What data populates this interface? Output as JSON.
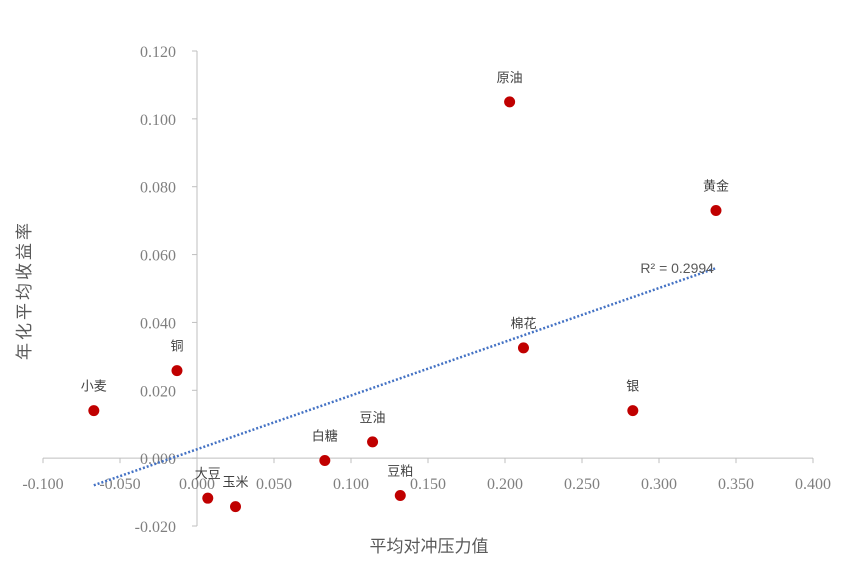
{
  "chart_data": {
    "type": "scatter",
    "title": "",
    "xlabel": "平均对冲压力值",
    "ylabel": "年化平均收益率",
    "xlim": [
      -0.1,
      0.4
    ],
    "ylim": [
      -0.02,
      0.12
    ],
    "x_ticks": [
      "-0.100",
      "-0.050",
      "0.000",
      "0.050",
      "0.100",
      "0.150",
      "0.200",
      "0.250",
      "0.300",
      "0.350",
      "0.400"
    ],
    "y_ticks": [
      "-0.020",
      "0.000",
      "0.020",
      "0.040",
      "0.060",
      "0.080",
      "0.100",
      "0.120"
    ],
    "grid": false,
    "legend": "none",
    "points": [
      {
        "label": "原油",
        "x": 0.203,
        "y": 0.105
      },
      {
        "label": "黄金",
        "x": 0.337,
        "y": 0.073
      },
      {
        "label": "棉花",
        "x": 0.212,
        "y": 0.0325
      },
      {
        "label": "银",
        "x": 0.283,
        "y": 0.014
      },
      {
        "label": "铜",
        "x": -0.013,
        "y": 0.0258
      },
      {
        "label": "小麦",
        "x": -0.067,
        "y": 0.014
      },
      {
        "label": "豆油",
        "x": 0.114,
        "y": 0.0048
      },
      {
        "label": "白糖",
        "x": 0.083,
        "y": -0.0007
      },
      {
        "label": "豆粕",
        "x": 0.132,
        "y": -0.011
      },
      {
        "label": "大豆",
        "x": 0.007,
        "y": -0.0118
      },
      {
        "label": "玉米",
        "x": 0.025,
        "y": -0.0143
      }
    ],
    "trendline": {
      "type": "linear",
      "x_start": -0.067,
      "y_start": -0.008,
      "x_end": 0.337,
      "y_end": 0.056,
      "r2_text": "R² = 0.2994"
    },
    "colors": {
      "marker": "#c00000",
      "trendline": "#4472c4",
      "axis": "#bfbfbf"
    }
  }
}
